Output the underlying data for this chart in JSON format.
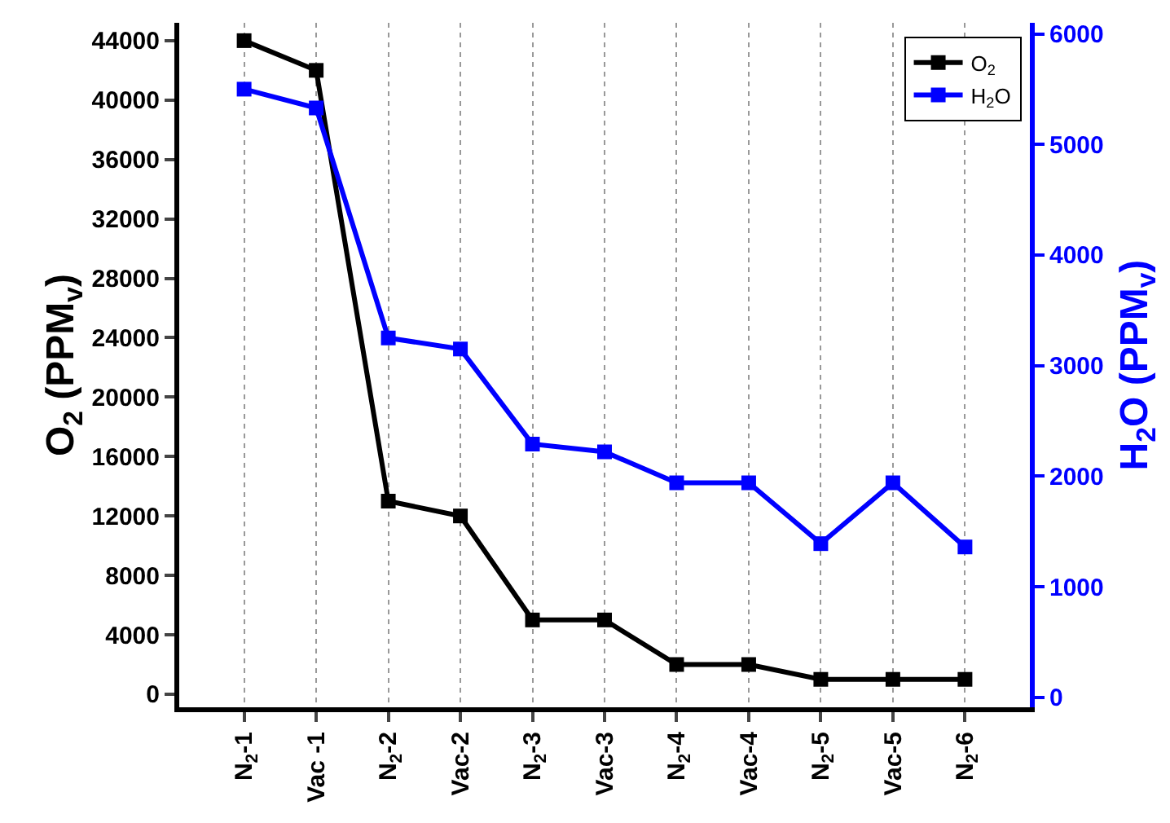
{
  "chart_data": {
    "type": "line",
    "categories": [
      "N$_{2}$-1",
      "Vac -1",
      "N$_{2}$-2",
      "Vac-2",
      "N$_{2}$-3",
      "Vac-3",
      "N$_{2}$-4",
      "Vac-4",
      "N$_{2}$-5",
      "Vac-5",
      "N$_{2}$-6"
    ],
    "series": [
      {
        "name": "O$_{2}$",
        "color": "#000000",
        "values": [
          44000,
          42000,
          13000,
          12000,
          5000,
          5000,
          2000,
          2000,
          1000,
          1000,
          1000
        ]
      },
      {
        "name": "H$_{2}$O",
        "color": "#0000ff",
        "axis": "y2",
        "values": [
          5500,
          5330,
          3250,
          3150,
          2290,
          2220,
          1940,
          1940,
          1390,
          1940,
          1360
        ]
      }
    ],
    "ylabel": "O$_{2}$ (PPM$_{v}$)",
    "y2label": "H$_{2}$O (PPM$_{v}$)",
    "ylim": [
      -880,
      45200
    ],
    "yticks": [
      0,
      4000,
      8000,
      12000,
      16000,
      20000,
      24000,
      28000,
      32000,
      36000,
      40000,
      44000
    ],
    "y2lim": [
      -90,
      6100
    ],
    "y2ticks": [
      0,
      1000,
      2000,
      3000,
      4000,
      5000,
      6000
    ],
    "grid": "x",
    "legend": "top right",
    "marker": "square",
    "line_style": "solid"
  }
}
